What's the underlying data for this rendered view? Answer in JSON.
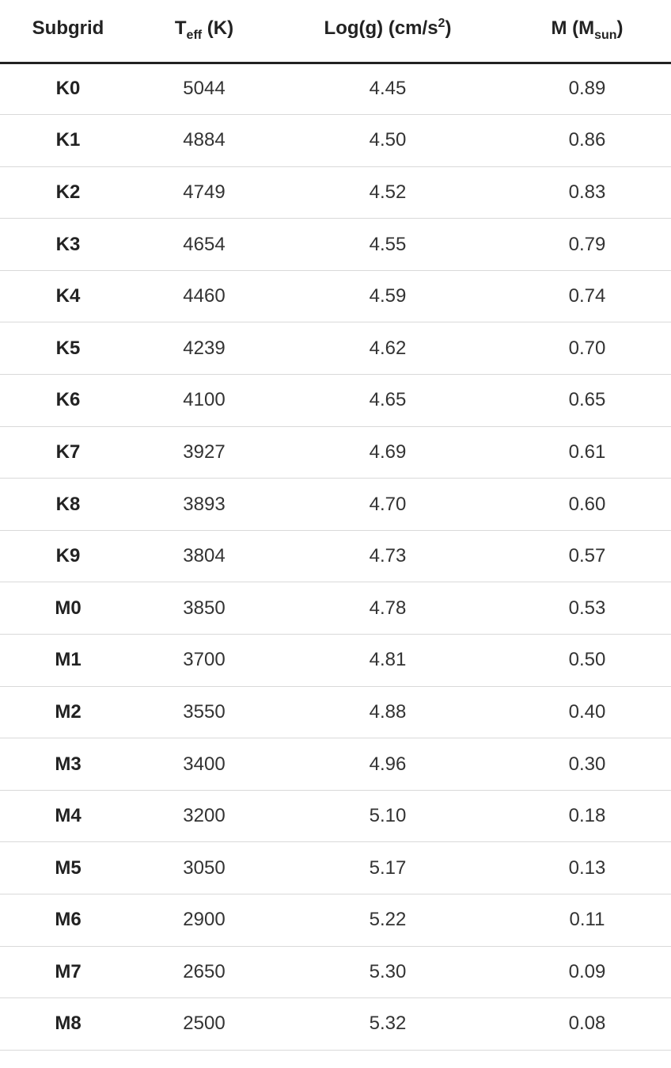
{
  "table": {
    "headers": {
      "subgrid": "Subgrid",
      "teff_main": "T",
      "teff_sub": "eff",
      "teff_unit": "(K)",
      "logg_main": "Log(g) (cm/s",
      "logg_sup": "2",
      "logg_close": ")",
      "mass_main": "M (M",
      "mass_sub": "sun",
      "mass_close": ")"
    },
    "rows": [
      {
        "subgrid": "K0",
        "teff": "5044",
        "logg": "4.45",
        "mass": "0.89"
      },
      {
        "subgrid": "K1",
        "teff": "4884",
        "logg": "4.50",
        "mass": "0.86"
      },
      {
        "subgrid": "K2",
        "teff": "4749",
        "logg": "4.52",
        "mass": "0.83"
      },
      {
        "subgrid": "K3",
        "teff": "4654",
        "logg": "4.55",
        "mass": "0.79"
      },
      {
        "subgrid": "K4",
        "teff": "4460",
        "logg": "4.59",
        "mass": "0.74"
      },
      {
        "subgrid": "K5",
        "teff": "4239",
        "logg": "4.62",
        "mass": "0.70"
      },
      {
        "subgrid": "K6",
        "teff": "4100",
        "logg": "4.65",
        "mass": "0.65"
      },
      {
        "subgrid": "K7",
        "teff": "3927",
        "logg": "4.69",
        "mass": "0.61"
      },
      {
        "subgrid": "K8",
        "teff": "3893",
        "logg": "4.70",
        "mass": "0.60"
      },
      {
        "subgrid": "K9",
        "teff": "3804",
        "logg": "4.73",
        "mass": "0.57"
      },
      {
        "subgrid": "M0",
        "teff": "3850",
        "logg": "4.78",
        "mass": "0.53"
      },
      {
        "subgrid": "M1",
        "teff": "3700",
        "logg": "4.81",
        "mass": "0.50"
      },
      {
        "subgrid": "M2",
        "teff": "3550",
        "logg": "4.88",
        "mass": "0.40"
      },
      {
        "subgrid": "M3",
        "teff": "3400",
        "logg": "4.96",
        "mass": "0.30"
      },
      {
        "subgrid": "M4",
        "teff": "3200",
        "logg": "5.10",
        "mass": "0.18"
      },
      {
        "subgrid": "M5",
        "teff": "3050",
        "logg": "5.17",
        "mass": "0.13"
      },
      {
        "subgrid": "M6",
        "teff": "2900",
        "logg": "5.22",
        "mass": "0.11"
      },
      {
        "subgrid": "M7",
        "teff": "2650",
        "logg": "5.30",
        "mass": "0.09"
      },
      {
        "subgrid": "M8",
        "teff": "2500",
        "logg": "5.32",
        "mass": "0.08"
      }
    ]
  }
}
